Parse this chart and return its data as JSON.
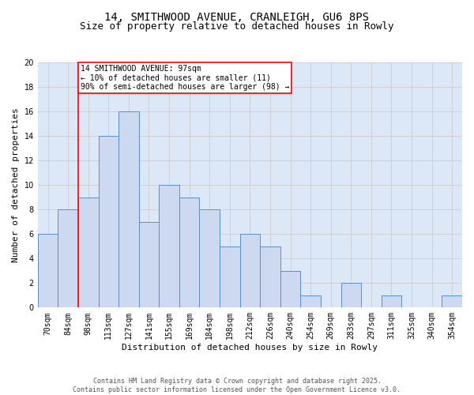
{
  "title1": "14, SMITHWOOD AVENUE, CRANLEIGH, GU6 8PS",
  "title2": "Size of property relative to detached houses in Rowly",
  "xlabel": "Distribution of detached houses by size in Rowly",
  "ylabel": "Number of detached properties",
  "categories": [
    "70sqm",
    "84sqm",
    "98sqm",
    "113sqm",
    "127sqm",
    "141sqm",
    "155sqm",
    "169sqm",
    "184sqm",
    "198sqm",
    "212sqm",
    "226sqm",
    "240sqm",
    "254sqm",
    "269sqm",
    "283sqm",
    "297sqm",
    "311sqm",
    "325sqm",
    "340sqm",
    "354sqm"
  ],
  "values": [
    6,
    8,
    9,
    14,
    16,
    7,
    10,
    9,
    8,
    5,
    6,
    5,
    3,
    1,
    0,
    2,
    0,
    1,
    0,
    0,
    1
  ],
  "bar_color": "#ccd9f0",
  "bar_edge_color": "#5b8fc9",
  "vline_x": 1.5,
  "vline_color": "red",
  "annotation_text": "14 SMITHWOOD AVENUE: 97sqm\n← 10% of detached houses are smaller (11)\n90% of semi-detached houses are larger (98) →",
  "annotation_box_color": "white",
  "annotation_box_edge_color": "red",
  "ylim": [
    0,
    20
  ],
  "yticks": [
    0,
    2,
    4,
    6,
    8,
    10,
    12,
    14,
    16,
    18,
    20
  ],
  "grid_color": "#cccccc",
  "background_color": "#dce8f8",
  "footer_text": "Contains HM Land Registry data © Crown copyright and database right 2025.\nContains public sector information licensed under the Open Government Licence v3.0.",
  "title_fontsize": 10,
  "subtitle_fontsize": 9,
  "xlabel_fontsize": 8,
  "ylabel_fontsize": 8,
  "tick_fontsize": 7,
  "annotation_fontsize": 7,
  "footer_fontsize": 6
}
